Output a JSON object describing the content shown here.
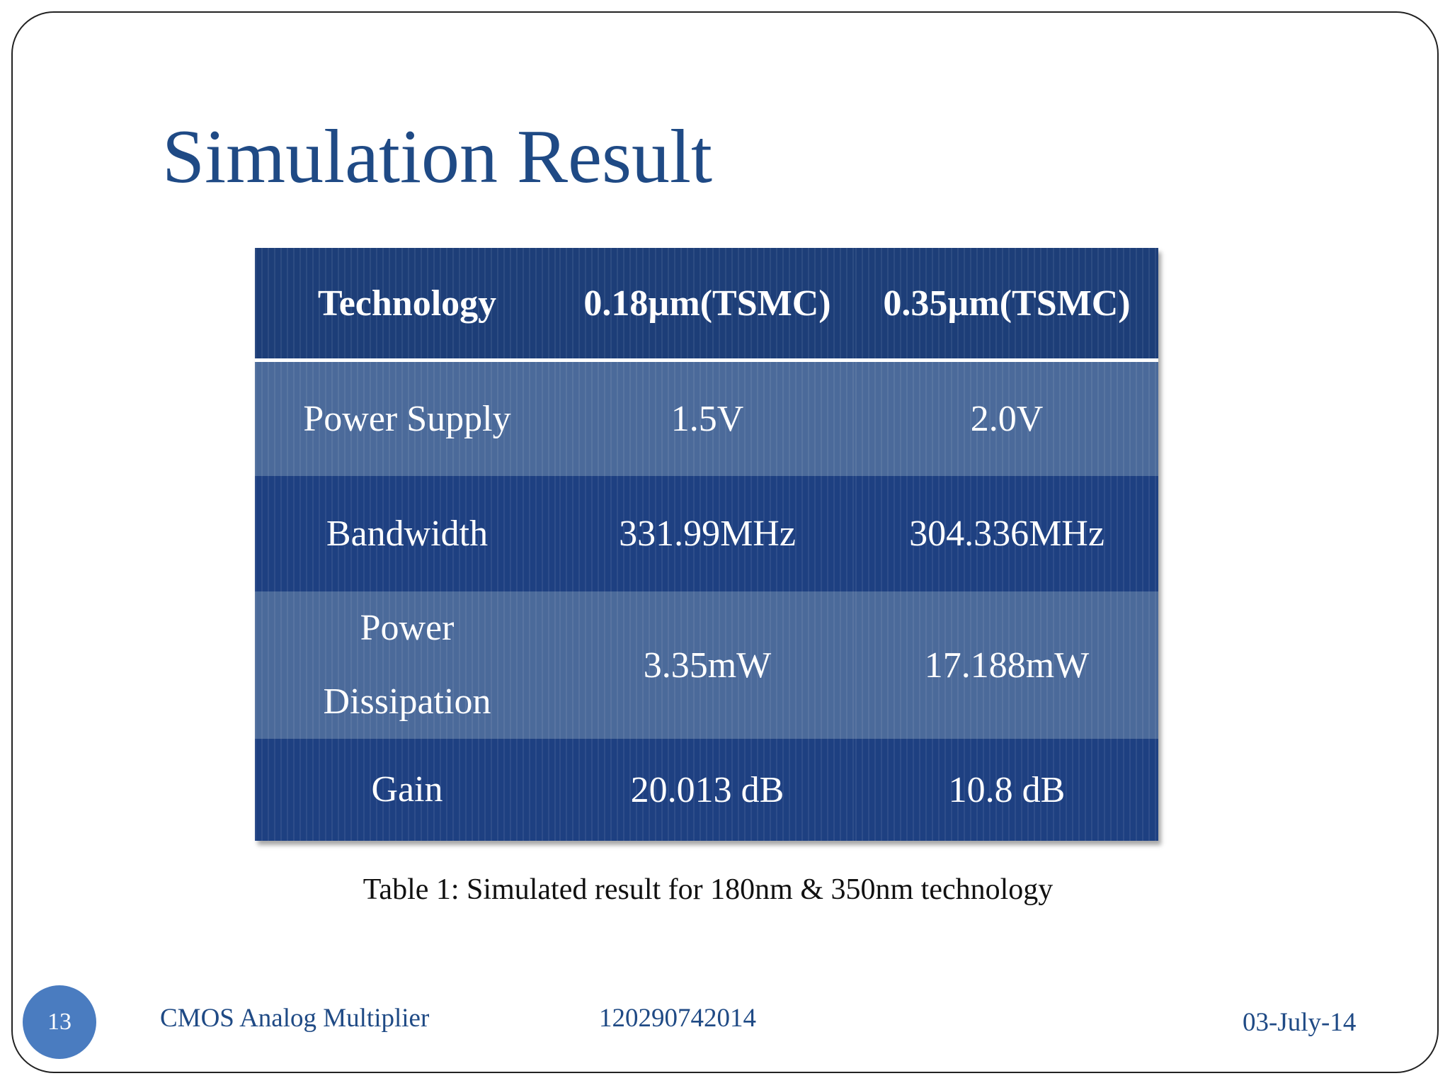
{
  "title": "Simulation Result",
  "table": {
    "header": [
      "Technology",
      "0.18µm(TSMC)",
      "0.35µm(TSMC)"
    ],
    "rows": [
      [
        "Power Supply",
        "1.5V",
        "2.0V"
      ],
      [
        "Bandwidth",
        "331.99MHz",
        "304.336MHz"
      ],
      [
        "Power Dissipation",
        "3.35mW",
        "17.188mW"
      ],
      [
        "Gain",
        "20.013 dB",
        "10.8 dB"
      ]
    ],
    "caption": "Table 1: Simulated result for 180nm & 350nm technology"
  },
  "footer": {
    "slide_number": "13",
    "subject": "CMOS Analog Multiplier",
    "id": "120290742014",
    "date": "03-July-14"
  }
}
